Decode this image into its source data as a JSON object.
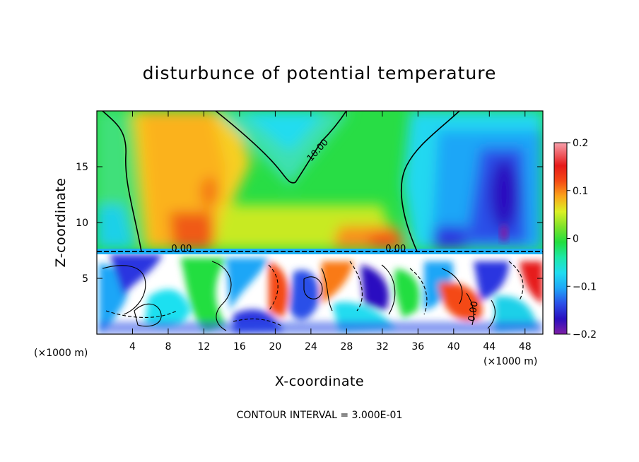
{
  "chart_data": {
    "type": "heatmap",
    "title": "disturbunce of potential temperature",
    "xlabel": "X-coordinate",
    "ylabel": "Z-coordinate",
    "x_unit_left": "(×1000 m)",
    "x_unit_right": "(×1000 m)",
    "xlim": [
      0,
      50
    ],
    "ylim": [
      0,
      20
    ],
    "x_ticks": [
      {
        "value": 4,
        "label": "4"
      },
      {
        "value": 8,
        "label": "8"
      },
      {
        "value": 12,
        "label": "12"
      },
      {
        "value": 16,
        "label": "16"
      },
      {
        "value": 20,
        "label": "20"
      },
      {
        "value": 24,
        "label": "24"
      },
      {
        "value": 28,
        "label": "28"
      },
      {
        "value": 32,
        "label": "32"
      },
      {
        "value": 36,
        "label": "36"
      },
      {
        "value": 40,
        "label": "40"
      },
      {
        "value": 44,
        "label": "44"
      },
      {
        "value": 48,
        "label": "48"
      }
    ],
    "y_ticks": [
      {
        "value": 5,
        "label": "5"
      },
      {
        "value": 10,
        "label": "10"
      },
      {
        "value": 15,
        "label": "15"
      }
    ],
    "colorbar": {
      "range": [
        -0.2,
        0.2
      ],
      "ticks": [
        {
          "value": 0.2,
          "label": "0.2"
        },
        {
          "value": 0.1,
          "label": "0.1"
        },
        {
          "value": 0,
          "label": "0"
        },
        {
          "value": -0.1,
          "label": "−0.1"
        },
        {
          "value": -0.2,
          "label": "−0.2"
        }
      ],
      "colors": [
        "#7f1fa6",
        "#2a0fc0",
        "#2b35e0",
        "#2b6cf0",
        "#1fa6f7",
        "#20d6f2",
        "#1fe8c2",
        "#1ae88a",
        "#22de3f",
        "#5fe02a",
        "#a6e826",
        "#dbf025",
        "#f7d21d",
        "#fba51a",
        "#f97a18",
        "#f44a15",
        "#e61a1a",
        "#f25a6e",
        "#f7a0ac"
      ]
    },
    "field_regions": [
      {
        "x": [
          0,
          50
        ],
        "z": [
          7.4,
          20
        ],
        "value": 0.0
      },
      {
        "x": [
          5.5,
          18
        ],
        "z": [
          7.5,
          20
        ],
        "value": 0.11
      },
      {
        "x": [
          9.5,
          13.5
        ],
        "z": [
          7.5,
          11
        ],
        "value": 0.16
      },
      {
        "x": [
          11.5,
          13.5
        ],
        "z": [
          11.5,
          14.5
        ],
        "value": 0.14
      },
      {
        "x": [
          18,
          32
        ],
        "z": [
          7.5,
          12
        ],
        "value": 0.07
      },
      {
        "x": [
          28,
          35
        ],
        "z": [
          7.5,
          9.5
        ],
        "value": 0.14
      },
      {
        "x": [
          19,
          28
        ],
        "z": [
          14,
          20
        ],
        "value": -0.03
      },
      {
        "x": [
          0,
          4
        ],
        "z": [
          7.5,
          11
        ],
        "value": -0.08
      },
      {
        "x": [
          37,
          50
        ],
        "z": [
          7.5,
          19.5
        ],
        "value": -0.09
      },
      {
        "x": [
          43,
          49
        ],
        "z": [
          7.5,
          16
        ],
        "value": -0.16
      },
      {
        "x": [
          39,
          42
        ],
        "z": [
          7.5,
          10
        ],
        "value": -0.12
      },
      {
        "x": [
          0,
          50
        ],
        "z": [
          0,
          7.4
        ],
        "value": "mixed ±0.2 turbulent layer"
      }
    ],
    "contour_labels": [
      {
        "text": "10.00",
        "x": 25,
        "z": 16.3
      },
      {
        "text": "0.00",
        "x": 9.5,
        "z": 7.4
      },
      {
        "text": "0.00",
        "x": 33.5,
        "z": 7.4
      },
      {
        "text": "0.00",
        "x": 42.5,
        "z": 2.0
      }
    ]
  },
  "footer": "CONTOUR INTERVAL = 3.000E-01"
}
